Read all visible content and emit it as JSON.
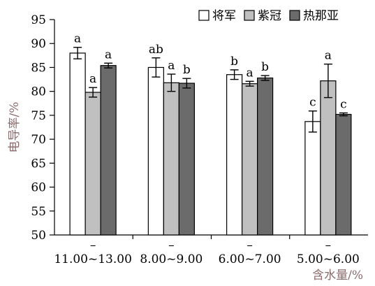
{
  "chart_data": {
    "type": "bar",
    "categories": [
      "11.00~13.00",
      "8.00~9.00",
      "6.00~7.00",
      "5.00~6.00"
    ],
    "category_dash": "–",
    "xlabel": "含水量/%",
    "ylabel": "电导率/%",
    "ylim": [
      50,
      95
    ],
    "yticks": [
      50,
      55,
      60,
      65,
      70,
      75,
      80,
      85,
      90,
      95
    ],
    "legend_position": "top-right",
    "series": [
      {
        "name": "将军",
        "color": "#ffffff",
        "values": [
          88.0,
          85.0,
          83.5,
          73.7
        ],
        "errors": [
          1.2,
          2.0,
          1.0,
          2.2
        ],
        "labels": [
          "a",
          "ab",
          "b",
          "c"
        ]
      },
      {
        "name": "紫冠",
        "color": "#c0c0c0",
        "values": [
          79.8,
          81.8,
          81.6,
          82.2
        ],
        "errors": [
          1.0,
          1.8,
          0.5,
          3.5
        ],
        "labels": [
          "a",
          "a",
          "a",
          "a"
        ]
      },
      {
        "name": "热那亚",
        "color": "#6b6b6b",
        "values": [
          85.4,
          81.7,
          82.8,
          75.2
        ],
        "errors": [
          0.5,
          1.0,
          0.5,
          0.3
        ],
        "labels": [
          "a",
          "b",
          "b",
          "c"
        ]
      }
    ]
  }
}
